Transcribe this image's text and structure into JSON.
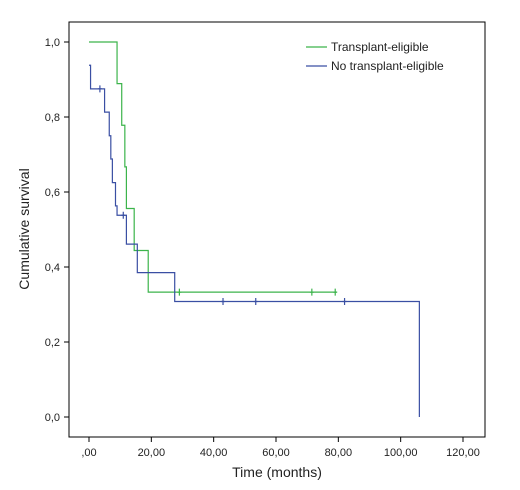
{
  "chart_data": {
    "type": "line",
    "subtype": "kaplan-meier step plot",
    "title": "",
    "xlabel": "Time (months)",
    "ylabel": "Cumulative survival",
    "xlim": [
      0,
      120
    ],
    "ylim": [
      0,
      1
    ],
    "x_ticks": [
      ",00",
      "20,00",
      "40,00",
      "60,00",
      "80,00",
      "100,00",
      "120,00"
    ],
    "y_ticks": [
      "0,0",
      "0,2",
      "0,4",
      "0,6",
      "0,8",
      "1,0"
    ],
    "grid": false,
    "legend_position": "top-right",
    "series": [
      {
        "name": "Transplant-eligible",
        "color": "#3cb44b",
        "steps": [
          [
            0,
            1.0
          ],
          [
            9,
            0.889
          ],
          [
            10.5,
            0.778
          ],
          [
            11.5,
            0.667
          ],
          [
            12,
            0.556
          ],
          [
            14.5,
            0.444
          ],
          [
            19,
            0.333
          ],
          [
            79.5,
            0.333
          ]
        ],
        "censored": [
          [
            29,
            0.333
          ],
          [
            71.5,
            0.333
          ],
          [
            79,
            0.333
          ]
        ]
      },
      {
        "name": "No transplant-eligible",
        "color": "#3a4fa3",
        "steps": [
          [
            0,
            0.938
          ],
          [
            0.5,
            0.875
          ],
          [
            5,
            0.813
          ],
          [
            6.5,
            0.75
          ],
          [
            7,
            0.688
          ],
          [
            7.5,
            0.625
          ],
          [
            8.5,
            0.563
          ],
          [
            9,
            0.538
          ],
          [
            12,
            0.461
          ],
          [
            15.5,
            0.385
          ],
          [
            27.5,
            0.308
          ],
          [
            106,
            0.0
          ]
        ],
        "censored": [
          [
            3.5,
            0.875
          ],
          [
            11,
            0.538
          ],
          [
            43,
            0.308
          ],
          [
            53.5,
            0.308
          ],
          [
            82,
            0.308
          ]
        ]
      }
    ]
  }
}
